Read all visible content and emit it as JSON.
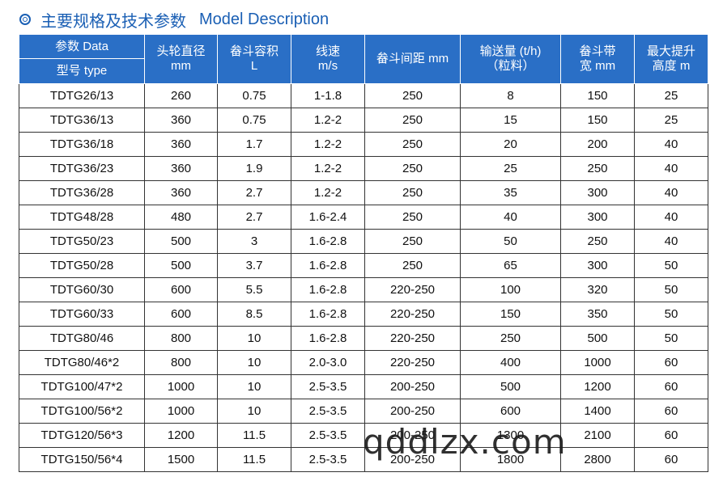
{
  "title": {
    "chinese": "主要规格及技术参数",
    "english": "Model Description"
  },
  "header": {
    "param_top": "参数 Data",
    "param_bottom": "型号 type",
    "col1_line1": "头轮直径",
    "col1_line2": "mm",
    "col2_line1": "畚斗容积",
    "col2_line2": "L",
    "col3_line1": "线速",
    "col3_line2": "m/s",
    "col4": "畚斗间距 mm",
    "col5_line1": "输送量 (t/h)",
    "col5_line2": "（粒料）",
    "col6_line1": "畚斗带",
    "col6_line2": "宽 mm",
    "col7_line1": "最大提升",
    "col7_line2": "高度 m"
  },
  "rows": [
    [
      "TDTG26/13",
      "260",
      "0.75",
      "1-1.8",
      "250",
      "8",
      "150",
      "25"
    ],
    [
      "TDTG36/13",
      "360",
      "0.75",
      "1.2-2",
      "250",
      "15",
      "150",
      "25"
    ],
    [
      "TDTG36/18",
      "360",
      "1.7",
      "1.2-2",
      "250",
      "20",
      "200",
      "40"
    ],
    [
      "TDTG36/23",
      "360",
      "1.9",
      "1.2-2",
      "250",
      "25",
      "250",
      "40"
    ],
    [
      "TDTG36/28",
      "360",
      "2.7",
      "1.2-2",
      "250",
      "35",
      "300",
      "40"
    ],
    [
      "TDTG48/28",
      "480",
      "2.7",
      "1.6-2.4",
      "250",
      "40",
      "300",
      "40"
    ],
    [
      "TDTG50/23",
      "500",
      "3",
      "1.6-2.8",
      "250",
      "50",
      "250",
      "40"
    ],
    [
      "TDTG50/28",
      "500",
      "3.7",
      "1.6-2.8",
      "250",
      "65",
      "300",
      "50"
    ],
    [
      "TDTG60/30",
      "600",
      "5.5",
      "1.6-2.8",
      "220-250",
      "100",
      "320",
      "50"
    ],
    [
      "TDTG60/33",
      "600",
      "8.5",
      "1.6-2.8",
      "220-250",
      "150",
      "350",
      "50"
    ],
    [
      "TDTG80/46",
      "800",
      "10",
      "1.6-2.8",
      "220-250",
      "250",
      "500",
      "50"
    ],
    [
      "TDTG80/46*2",
      "800",
      "10",
      "2.0-3.0",
      "220-250",
      "400",
      "1000",
      "60"
    ],
    [
      "TDTG100/47*2",
      "1000",
      "10",
      "2.5-3.5",
      "200-250",
      "500",
      "1200",
      "60"
    ],
    [
      "TDTG100/56*2",
      "1000",
      "10",
      "2.5-3.5",
      "200-250",
      "600",
      "1400",
      "60"
    ],
    [
      "TDTG120/56*3",
      "1200",
      "11.5",
      "2.5-3.5",
      "200-250",
      "1300",
      "2100",
      "60"
    ],
    [
      "TDTG150/56*4",
      "1500",
      "11.5",
      "2.5-3.5",
      "200-250",
      "1800",
      "2800",
      "60"
    ]
  ],
  "watermark": "qddlzx.com"
}
